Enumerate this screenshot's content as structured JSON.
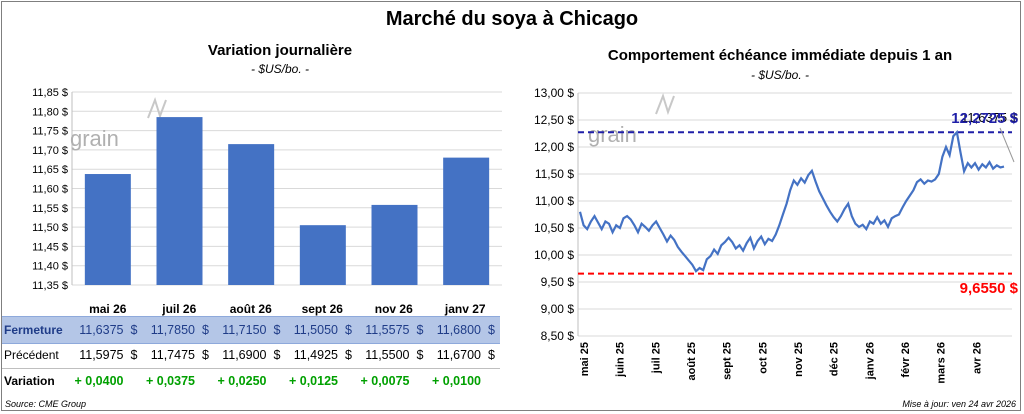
{
  "main_title": "Marché du soya à Chicago",
  "left_chart": {
    "title": "Variation journalière",
    "subtitle": "- $US/bo. -",
    "watermark": "grain",
    "y_ticks": [
      "11,85 $",
      "11,80 $",
      "11,75 $",
      "11,70 $",
      "11,65 $",
      "11,60 $",
      "11,55 $",
      "11,50 $",
      "11,45 $",
      "11,40 $",
      "11,35 $"
    ]
  },
  "right_chart": {
    "title": "Comportement  échéance immédiate depuis 1 an",
    "subtitle": "- $US/bo. -",
    "watermark": "grain",
    "y_ticks": [
      "13,00 $",
      "12,50 $",
      "12,00 $",
      "11,50 $",
      "11,00 $",
      "10,50 $",
      "10,00 $",
      "9,50 $",
      "9,00 $",
      "8,50 $"
    ],
    "x_ticks": [
      "mai 25",
      "juin 25",
      "juil 25",
      "août 25",
      "sept 25",
      "oct 25",
      "nov 25",
      "déc 25",
      "janv 26",
      "févr 26",
      "mars 26",
      "avr 26"
    ],
    "max_label": "12,2725 $",
    "min_label": "9,6550 $",
    "last_label": "11,6375 $"
  },
  "table": {
    "row_labels": {
      "close": "Fermeture",
      "prev": "Précédent",
      "var": "Variation"
    },
    "currency": "$",
    "contracts": [
      "mai 26",
      "juil 26",
      "août 26",
      "sept 26",
      "nov 26",
      "janv 27"
    ],
    "close": [
      "11,6375",
      "11,7850",
      "11,7150",
      "11,5050",
      "11,5575",
      "11,6800"
    ],
    "prev": [
      "11,5975",
      "11,7475",
      "11,6900",
      "11,4925",
      "11,5500",
      "11,6700"
    ],
    "var": [
      "+ 0,0400",
      "+ 0,0375",
      "+ 0,0250",
      "+ 0,0125",
      "+ 0,0075",
      "+ 0,0100"
    ]
  },
  "footer": {
    "source": "Source: CME Group",
    "updated": "Mise à jour: ven 24 avr 2026"
  },
  "colors": {
    "bar": "#4472c4",
    "line": "#4472c4",
    "max_line": "#1f1fa8",
    "min_line": "#ff0000",
    "positive": "#00a000",
    "close_row_bg": "#b4c6e7",
    "grid": "#d9d9d9"
  },
  "chart_data": [
    {
      "type": "bar",
      "title": "Variation journalière",
      "ylabel": "$US/bo.",
      "categories": [
        "mai 26",
        "juil 26",
        "août 26",
        "sept 26",
        "nov 26",
        "janv 27"
      ],
      "values": [
        11.6375,
        11.785,
        11.715,
        11.505,
        11.5575,
        11.68
      ],
      "ylim": [
        11.35,
        11.85
      ],
      "grid": true
    },
    {
      "type": "line",
      "title": "Comportement  échéance immédiate depuis 1 an",
      "ylabel": "$US/bo.",
      "ylim": [
        8.5,
        13.0
      ],
      "x_labels": [
        "mai 25",
        "juin 25",
        "juil 25",
        "août 25",
        "sept 25",
        "oct 25",
        "nov 25",
        "déc 25",
        "janv 26",
        "févr 26",
        "mars 26",
        "avr 26"
      ],
      "reference_lines": {
        "max": 12.2725,
        "min": 9.655
      },
      "grid": true,
      "y": [
        10.8,
        10.55,
        10.48,
        10.62,
        10.72,
        10.6,
        10.48,
        10.62,
        10.58,
        10.42,
        10.55,
        10.5,
        10.68,
        10.72,
        10.66,
        10.55,
        10.42,
        10.58,
        10.52,
        10.45,
        10.55,
        10.62,
        10.5,
        10.38,
        10.25,
        10.36,
        10.28,
        10.15,
        10.06,
        9.98,
        9.9,
        9.82,
        9.7,
        9.76,
        9.72,
        9.92,
        9.98,
        10.1,
        10.02,
        10.18,
        10.24,
        10.32,
        10.24,
        10.12,
        10.18,
        10.08,
        10.22,
        10.32,
        10.12,
        10.26,
        10.34,
        10.2,
        10.3,
        10.26,
        10.38,
        10.55,
        10.75,
        10.95,
        11.2,
        11.38,
        11.3,
        11.42,
        11.34,
        11.48,
        11.56,
        11.36,
        11.18,
        11.05,
        10.92,
        10.8,
        10.7,
        10.62,
        10.72,
        10.85,
        10.95,
        10.72,
        10.58,
        10.52,
        10.56,
        10.48,
        10.62,
        10.58,
        10.7,
        10.58,
        10.64,
        10.52,
        10.68,
        10.72,
        10.75,
        10.88,
        11.0,
        11.1,
        11.2,
        11.35,
        11.4,
        11.32,
        11.38,
        11.36,
        11.4,
        11.5,
        11.82,
        12.0,
        11.85,
        12.2,
        12.2725,
        11.9,
        11.55,
        11.7,
        11.62,
        11.7,
        11.58,
        11.68,
        11.62,
        11.72,
        11.6,
        11.66,
        11.62,
        11.6375
      ]
    }
  ]
}
